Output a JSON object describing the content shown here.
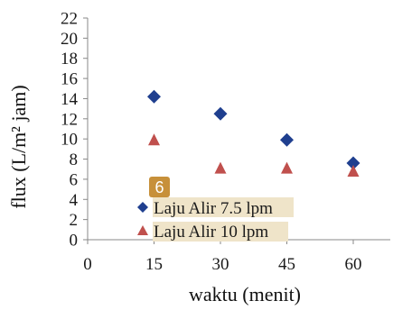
{
  "chart_data": {
    "type": "scatter",
    "xlabel": "waktu (menit)",
    "ylabel": "flux (L/m² jam)",
    "xlim": [
      0,
      70
    ],
    "ylim": [
      0,
      22
    ],
    "x_ticks": [
      0,
      15,
      30,
      45,
      60
    ],
    "y_ticks": [
      0,
      2,
      4,
      6,
      8,
      10,
      12,
      14,
      16,
      18,
      20,
      22
    ],
    "grid": false,
    "legend_position": "bottom-left",
    "series": [
      {
        "name": "Laju Alir 7.5 lpm",
        "marker": "diamond",
        "color": "#1f3f8f",
        "x": [
          15,
          30,
          45,
          60
        ],
        "y": [
          14.2,
          12.5,
          9.9,
          7.6
        ]
      },
      {
        "name": "Laju Alir 10 lpm",
        "marker": "triangle",
        "color": "#c0504d",
        "x": [
          15,
          30,
          45,
          60
        ],
        "y": [
          9.9,
          7.1,
          7.1,
          6.8
        ]
      }
    ]
  },
  "badge": {
    "label": "6"
  }
}
